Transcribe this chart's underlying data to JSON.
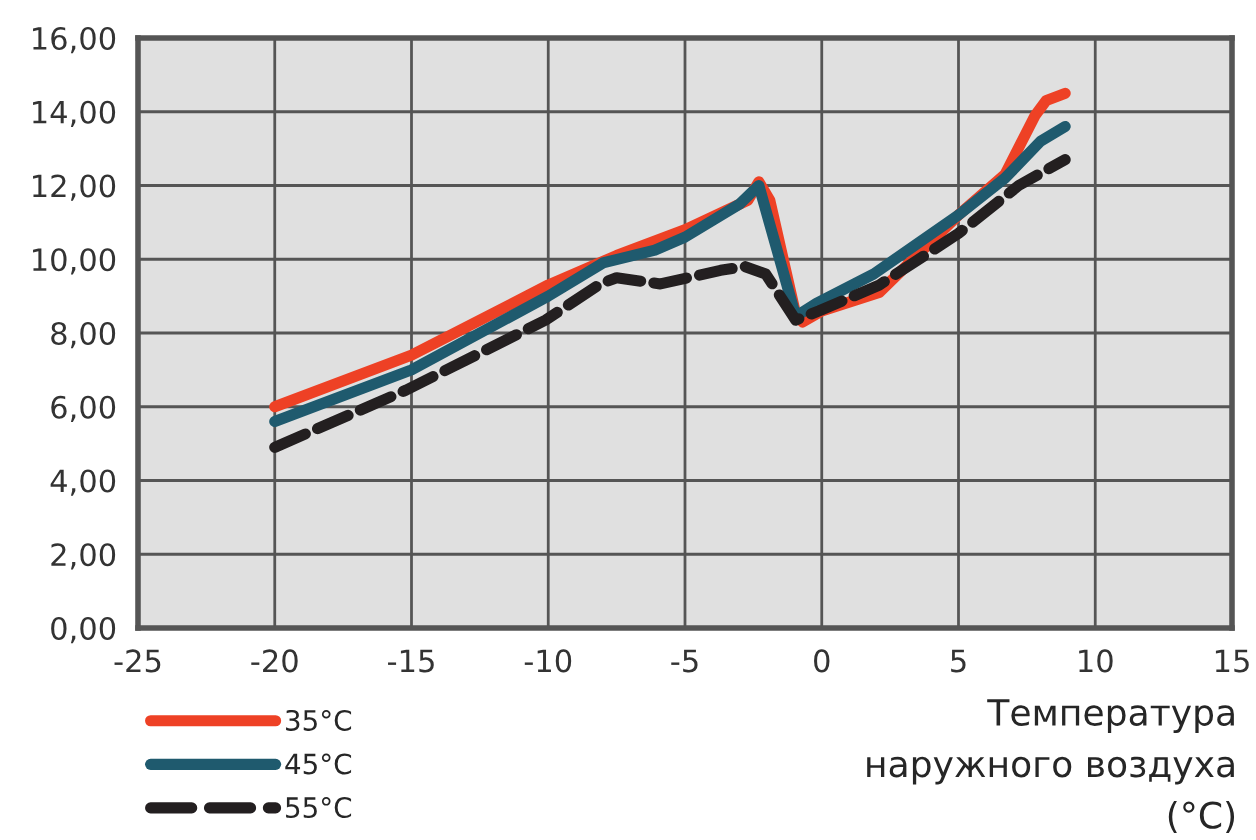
{
  "chart_data": {
    "type": "line",
    "xlabel": "Температура\nнаружного воздуха\n(°C)",
    "xlim": [
      -25,
      15
    ],
    "xticks": [
      -25,
      -20,
      -15,
      -10,
      -5,
      0,
      5,
      10,
      15
    ],
    "ylim": [
      0,
      16
    ],
    "yticks": [
      {
        "value": 0,
        "label": "0,00"
      },
      {
        "value": 2,
        "label": "2,00"
      },
      {
        "value": 4,
        "label": "4,00"
      },
      {
        "value": 6,
        "label": "6,00"
      },
      {
        "value": 8,
        "label": "8,00"
      },
      {
        "value": 10,
        "label": "10,00"
      },
      {
        "value": 12,
        "label": "12,00"
      },
      {
        "value": 14,
        "label": "14,00"
      },
      {
        "value": 16,
        "label": "16,00"
      }
    ],
    "grid": true,
    "legend": "bottom left",
    "series": [
      {
        "name": "35°C",
        "color": "#ee4125",
        "line_style": "solid",
        "x": [
          -20,
          -15,
          -10,
          -7.5,
          -5,
          -2.7,
          -2.3,
          -1.9,
          -0.95,
          -0.7,
          0,
          2.1,
          5,
          6.7,
          7.8,
          8.2,
          8.9
        ],
        "values": [
          6.0,
          7.4,
          9.3,
          10.1,
          10.8,
          11.6,
          12.1,
          11.6,
          8.5,
          8.3,
          8.6,
          9.1,
          11.2,
          12.3,
          13.9,
          14.3,
          14.5
        ]
      },
      {
        "name": "45°C",
        "color": "#1f5a6e",
        "line_style": "solid",
        "x": [
          -20,
          -15,
          -10,
          -8,
          -6.1,
          -5,
          -3,
          -2.3,
          -0.95,
          -0.2,
          1.9,
          5,
          6.7,
          8,
          8.9
        ],
        "values": [
          5.6,
          7.0,
          9.0,
          9.9,
          10.25,
          10.6,
          11.5,
          12.0,
          8.45,
          8.8,
          9.6,
          11.2,
          12.2,
          13.2,
          13.6
        ]
      },
      {
        "name": "55°C",
        "color": "#231f20",
        "line_style": "dashed",
        "x": [
          -20,
          -15.2,
          -10.1,
          -8.1,
          -7.5,
          -5.9,
          -3.7,
          -2.8,
          -2.05,
          -0.95,
          -0.1,
          2.1,
          5,
          7.2,
          8.9
        ],
        "values": [
          4.9,
          6.45,
          8.35,
          9.33,
          9.5,
          9.33,
          9.7,
          9.8,
          9.6,
          8.35,
          8.6,
          9.3,
          10.7,
          12.0,
          12.7
        ]
      }
    ]
  }
}
